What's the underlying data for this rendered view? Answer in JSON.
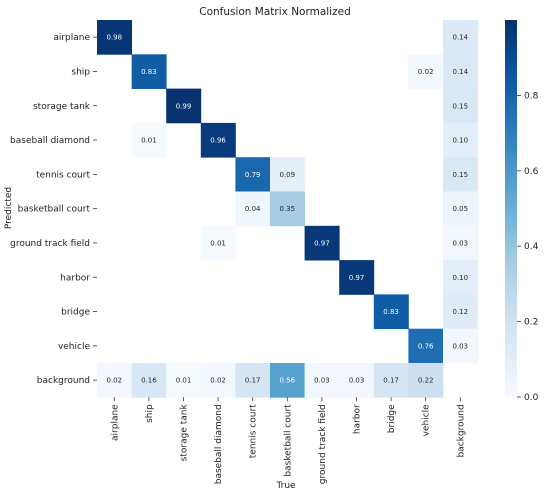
{
  "chart_data": {
    "type": "heatmap",
    "title": "Confusion Matrix Normalized",
    "xlabel": "True",
    "ylabel": "Predicted",
    "x_categories": [
      "airplane",
      "ship",
      "storage tank",
      "baseball diamond",
      "tennis court",
      "basketball court",
      "ground track field",
      "harbor",
      "bridge",
      "vehicle",
      "background"
    ],
    "y_categories": [
      "airplane",
      "ship",
      "storage tank",
      "baseball diamond",
      "tennis court",
      "basketball court",
      "ground track field",
      "harbor",
      "bridge",
      "vehicle",
      "background"
    ],
    "values": [
      [
        0.98,
        null,
        null,
        null,
        null,
        null,
        null,
        null,
        null,
        null,
        0.14
      ],
      [
        null,
        0.83,
        null,
        null,
        null,
        null,
        null,
        null,
        null,
        0.02,
        0.14
      ],
      [
        null,
        null,
        0.99,
        null,
        null,
        null,
        null,
        null,
        null,
        null,
        0.15
      ],
      [
        null,
        0.01,
        null,
        0.96,
        null,
        null,
        null,
        null,
        null,
        null,
        0.1
      ],
      [
        null,
        null,
        null,
        null,
        0.79,
        0.09,
        null,
        null,
        null,
        null,
        0.15
      ],
      [
        null,
        null,
        null,
        null,
        0.04,
        0.35,
        null,
        null,
        null,
        null,
        0.05
      ],
      [
        null,
        null,
        null,
        0.01,
        null,
        null,
        0.97,
        null,
        null,
        null,
        0.03
      ],
      [
        null,
        null,
        null,
        null,
        null,
        null,
        null,
        0.97,
        null,
        null,
        0.1
      ],
      [
        null,
        null,
        null,
        null,
        null,
        null,
        null,
        null,
        0.83,
        null,
        0.12
      ],
      [
        null,
        null,
        null,
        null,
        null,
        null,
        null,
        null,
        null,
        0.76,
        0.03
      ],
      [
        0.02,
        0.16,
        0.01,
        0.02,
        0.17,
        0.56,
        0.03,
        0.03,
        0.17,
        0.22,
        null
      ]
    ],
    "colorbar": {
      "range": [
        0,
        1
      ],
      "ticks": [
        0.0,
        0.2,
        0.4,
        0.6,
        0.8
      ],
      "tick_labels": [
        "0.0",
        "0.2",
        "0.4",
        "0.6",
        "0.8"
      ]
    },
    "colormap": "Blues"
  }
}
